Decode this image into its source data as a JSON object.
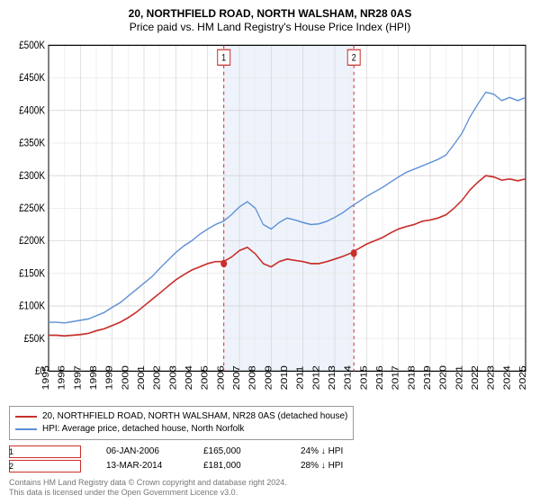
{
  "title": {
    "main": "20, NORTHFIELD ROAD, NORTH WALSHAM, NR28 0AS",
    "sub": "Price paid vs. HM Land Registry's House Price Index (HPI)",
    "fontsize": 12
  },
  "chart": {
    "type": "line",
    "background_color": "#ffffff",
    "grid_color": "#e8e8e8",
    "grid_color_dark": "#cfcfcf",
    "axis_color": "#000000",
    "xlim": [
      1995,
      2025
    ],
    "ylim": [
      0,
      500000
    ],
    "ytick_step": 50000,
    "yticks": [
      "£0",
      "£50K",
      "£100K",
      "£150K",
      "£200K",
      "£250K",
      "£300K",
      "£350K",
      "£400K",
      "£450K",
      "£500K"
    ],
    "xticks": [
      1995,
      1996,
      1997,
      1998,
      1999,
      2000,
      2001,
      2002,
      2003,
      2004,
      2005,
      2006,
      2007,
      2008,
      2009,
      2010,
      2011,
      2012,
      2013,
      2014,
      2015,
      2016,
      2017,
      2018,
      2019,
      2020,
      2021,
      2022,
      2023,
      2024,
      2025
    ],
    "marker_band_color": "#eef3fb",
    "marker_line_color": "#c9302c",
    "marker_line_dash": "3,3",
    "series": [
      {
        "name": "property",
        "label": "20, NORTHFIELD ROAD, NORTH WALSHAM, NR28 0AS (detached house)",
        "color": "#c9302c",
        "width": 1.4,
        "points": [
          [
            1995,
            55000
          ],
          [
            1995.5,
            55000
          ],
          [
            1996,
            54000
          ],
          [
            1996.5,
            55000
          ],
          [
            1997,
            56000
          ],
          [
            1997.5,
            58000
          ],
          [
            1998,
            62000
          ],
          [
            1998.5,
            65000
          ],
          [
            1999,
            70000
          ],
          [
            1999.5,
            75000
          ],
          [
            2000,
            82000
          ],
          [
            2000.5,
            90000
          ],
          [
            2001,
            100000
          ],
          [
            2001.5,
            110000
          ],
          [
            2002,
            120000
          ],
          [
            2002.5,
            130000
          ],
          [
            2003,
            140000
          ],
          [
            2003.5,
            148000
          ],
          [
            2004,
            155000
          ],
          [
            2004.5,
            160000
          ],
          [
            2005,
            165000
          ],
          [
            2005.5,
            168000
          ],
          [
            2006,
            168000
          ],
          [
            2006.5,
            175000
          ],
          [
            2007,
            185000
          ],
          [
            2007.5,
            190000
          ],
          [
            2008,
            180000
          ],
          [
            2008.5,
            165000
          ],
          [
            2009,
            160000
          ],
          [
            2009.5,
            168000
          ],
          [
            2010,
            172000
          ],
          [
            2010.5,
            170000
          ],
          [
            2011,
            168000
          ],
          [
            2011.5,
            165000
          ],
          [
            2012,
            165000
          ],
          [
            2012.5,
            168000
          ],
          [
            2013,
            172000
          ],
          [
            2013.5,
            176000
          ],
          [
            2014,
            181000
          ],
          [
            2014.5,
            188000
          ],
          [
            2015,
            195000
          ],
          [
            2015.5,
            200000
          ],
          [
            2016,
            205000
          ],
          [
            2016.5,
            212000
          ],
          [
            2017,
            218000
          ],
          [
            2017.5,
            222000
          ],
          [
            2018,
            225000
          ],
          [
            2018.5,
            230000
          ],
          [
            2019,
            232000
          ],
          [
            2019.5,
            235000
          ],
          [
            2020,
            240000
          ],
          [
            2020.5,
            250000
          ],
          [
            2021,
            262000
          ],
          [
            2021.5,
            278000
          ],
          [
            2022,
            290000
          ],
          [
            2022.5,
            300000
          ],
          [
            2023,
            298000
          ],
          [
            2023.5,
            293000
          ],
          [
            2024,
            295000
          ],
          [
            2024.5,
            292000
          ],
          [
            2025,
            295000
          ]
        ]
      },
      {
        "name": "hpi",
        "label": "HPI: Average price, detached house, North Norfolk",
        "color": "#5b8fd6",
        "width": 1.2,
        "points": [
          [
            1995,
            75000
          ],
          [
            1995.5,
            75000
          ],
          [
            1996,
            74000
          ],
          [
            1996.5,
            76000
          ],
          [
            1997,
            78000
          ],
          [
            1997.5,
            80000
          ],
          [
            1998,
            85000
          ],
          [
            1998.5,
            90000
          ],
          [
            1999,
            98000
          ],
          [
            1999.5,
            105000
          ],
          [
            2000,
            115000
          ],
          [
            2000.5,
            125000
          ],
          [
            2001,
            135000
          ],
          [
            2001.5,
            145000
          ],
          [
            2002,
            158000
          ],
          [
            2002.5,
            170000
          ],
          [
            2003,
            182000
          ],
          [
            2003.5,
            192000
          ],
          [
            2004,
            200000
          ],
          [
            2004.5,
            210000
          ],
          [
            2005,
            218000
          ],
          [
            2005.5,
            225000
          ],
          [
            2006,
            230000
          ],
          [
            2006.5,
            240000
          ],
          [
            2007,
            252000
          ],
          [
            2007.5,
            260000
          ],
          [
            2008,
            250000
          ],
          [
            2008.5,
            225000
          ],
          [
            2009,
            218000
          ],
          [
            2009.5,
            228000
          ],
          [
            2010,
            235000
          ],
          [
            2010.5,
            232000
          ],
          [
            2011,
            228000
          ],
          [
            2011.5,
            225000
          ],
          [
            2012,
            226000
          ],
          [
            2012.5,
            230000
          ],
          [
            2013,
            236000
          ],
          [
            2013.5,
            243000
          ],
          [
            2014,
            252000
          ],
          [
            2014.5,
            260000
          ],
          [
            2015,
            268000
          ],
          [
            2015.5,
            275000
          ],
          [
            2016,
            282000
          ],
          [
            2016.5,
            290000
          ],
          [
            2017,
            298000
          ],
          [
            2017.5,
            305000
          ],
          [
            2018,
            310000
          ],
          [
            2018.5,
            315000
          ],
          [
            2019,
            320000
          ],
          [
            2019.5,
            325000
          ],
          [
            2020,
            332000
          ],
          [
            2020.5,
            348000
          ],
          [
            2021,
            365000
          ],
          [
            2021.5,
            390000
          ],
          [
            2022,
            410000
          ],
          [
            2022.5,
            428000
          ],
          [
            2023,
            425000
          ],
          [
            2023.5,
            415000
          ],
          [
            2024,
            420000
          ],
          [
            2024.5,
            415000
          ],
          [
            2025,
            420000
          ]
        ]
      }
    ],
    "sale_markers": [
      {
        "n": "1",
        "x": 2006.02,
        "y": 165000
      },
      {
        "n": "2",
        "x": 2014.2,
        "y": 181000
      }
    ]
  },
  "legend": {
    "items": [
      {
        "color": "#c9302c",
        "label": "20, NORTHFIELD ROAD, NORTH WALSHAM, NR28 0AS (detached house)"
      },
      {
        "color": "#5b8fd6",
        "label": "HPI: Average price, detached house, North Norfolk"
      }
    ]
  },
  "sales": [
    {
      "n": "1",
      "color": "#c9302c",
      "date": "06-JAN-2006",
      "price": "£165,000",
      "delta": "24% ↓ HPI"
    },
    {
      "n": "2",
      "color": "#c9302c",
      "date": "13-MAR-2014",
      "price": "£181,000",
      "delta": "28% ↓ HPI"
    }
  ],
  "footer": {
    "line1": "Contains HM Land Registry data © Crown copyright and database right 2024.",
    "line2": "This data is licensed under the Open Government Licence v3.0."
  }
}
